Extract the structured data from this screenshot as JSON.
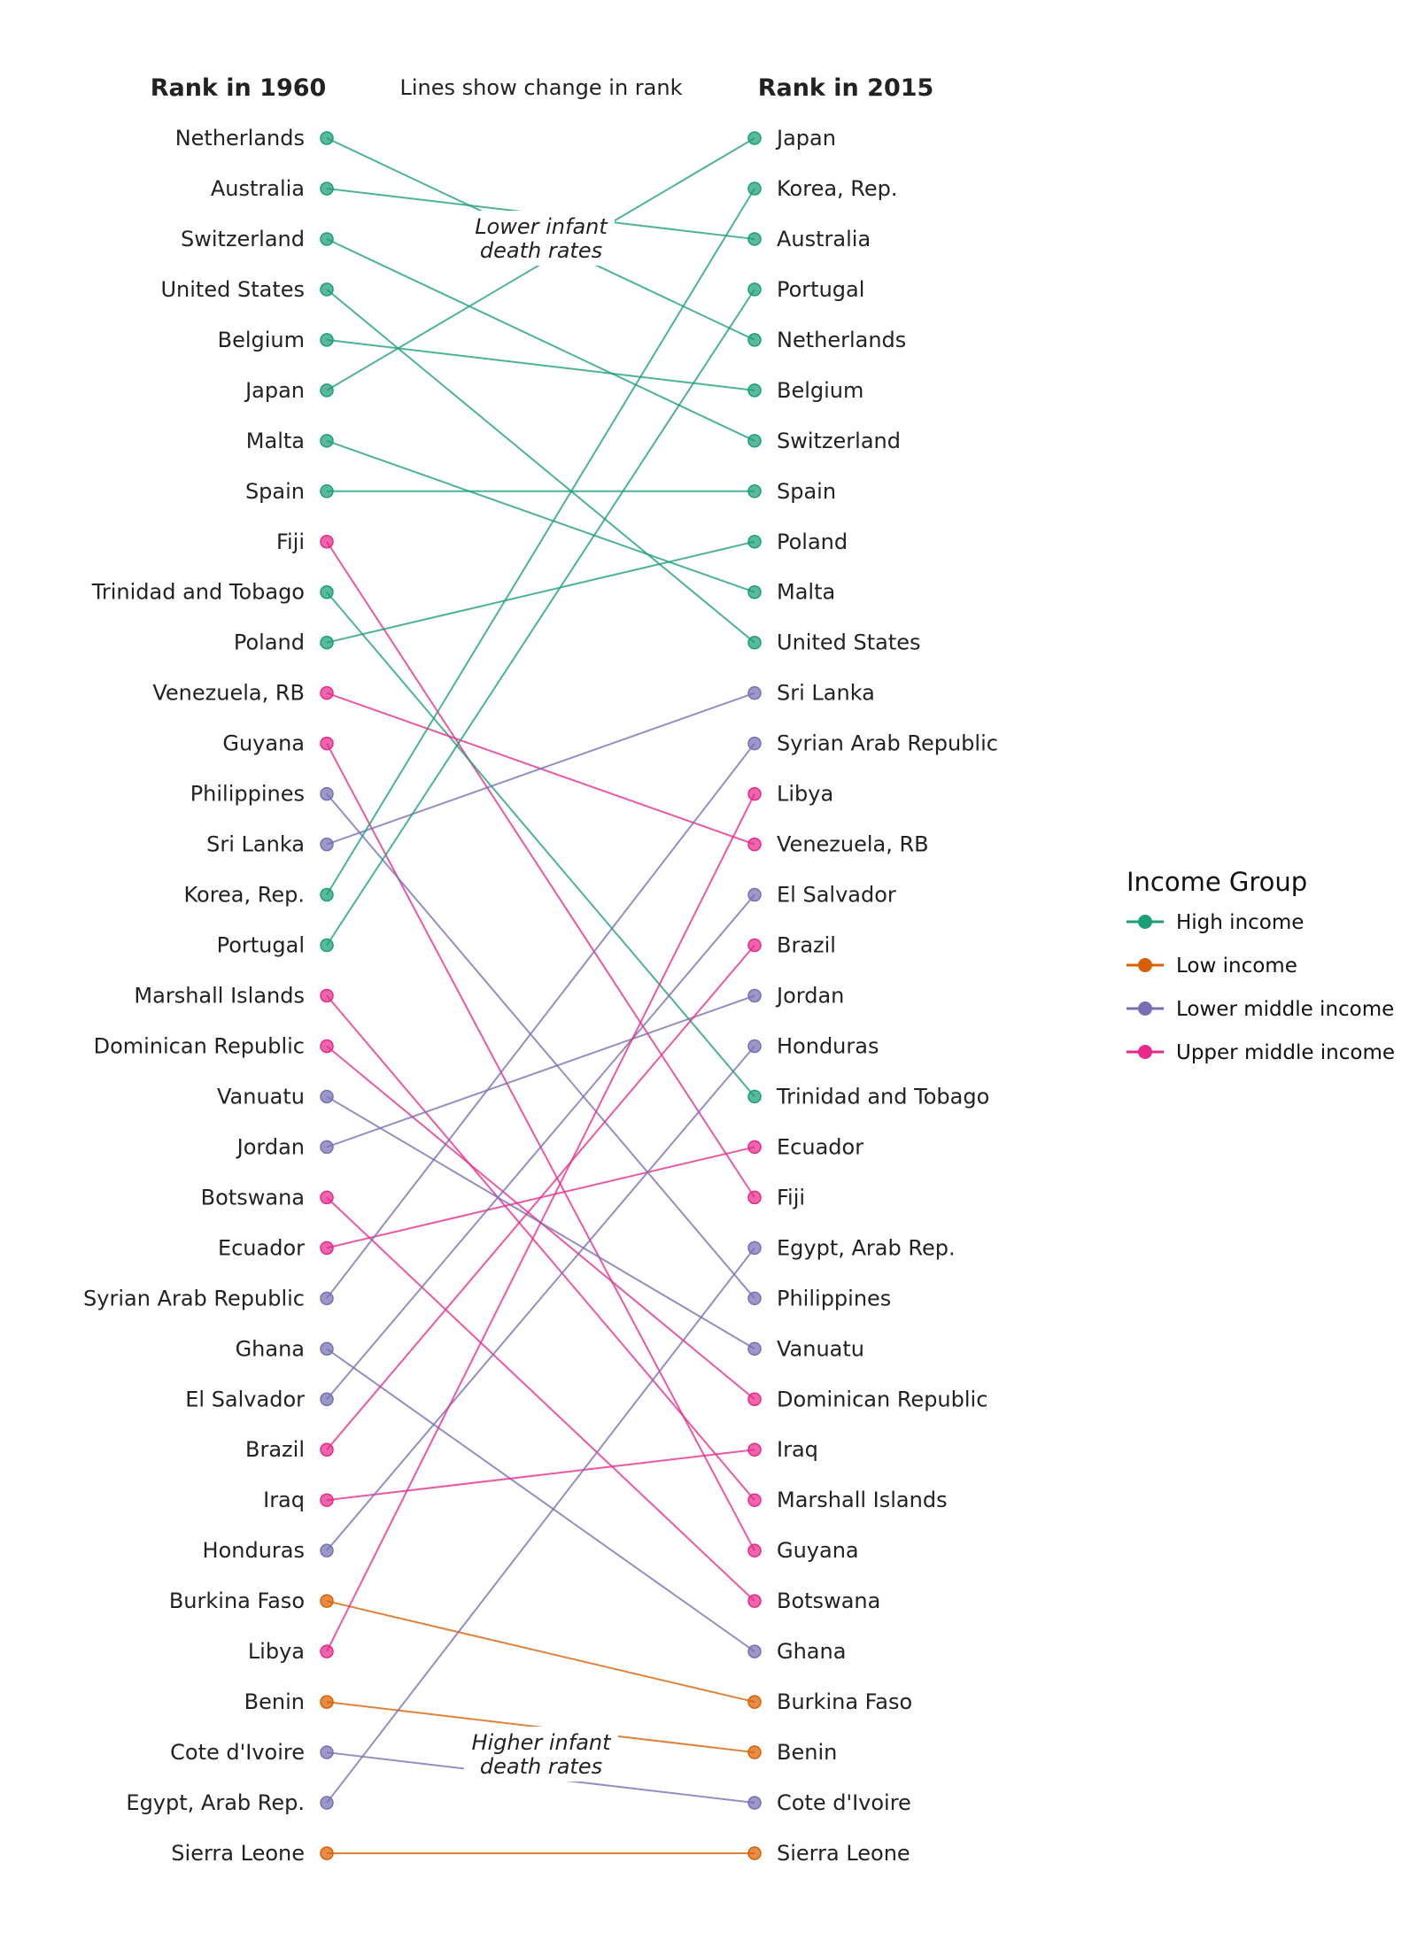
{
  "chart_data": {
    "type": "slope",
    "left_label": "Rank in 1960",
    "right_label": "Rank in 2015",
    "subtitle": "Lines show change in rank",
    "annotations": {
      "top": [
        "Lower infant",
        "death rates"
      ],
      "bottom": [
        "Higher infant",
        "death rates"
      ]
    },
    "legend_title": "Income Group",
    "legend_position": "right",
    "groups": [
      {
        "name": "High income",
        "color": "#1b9e77"
      },
      {
        "name": "Low income",
        "color": "#d95f02"
      },
      {
        "name": "Lower middle income",
        "color": "#7570b3"
      },
      {
        "name": "Upper middle income",
        "color": "#e7298a"
      }
    ],
    "rank_1960": [
      "Netherlands",
      "Australia",
      "Switzerland",
      "United States",
      "Belgium",
      "Japan",
      "Malta",
      "Spain",
      "Fiji",
      "Trinidad and Tobago",
      "Poland",
      "Venezuela, RB",
      "Guyana",
      "Philippines",
      "Sri Lanka",
      "Korea, Rep.",
      "Portugal",
      "Marshall Islands",
      "Dominican Republic",
      "Vanuatu",
      "Jordan",
      "Botswana",
      "Ecuador",
      "Syrian Arab Republic",
      "Ghana",
      "El Salvador",
      "Brazil",
      "Iraq",
      "Honduras",
      "Burkina Faso",
      "Libya",
      "Benin",
      "Cote d'Ivoire",
      "Egypt, Arab Rep.",
      "Sierra Leone"
    ],
    "rank_2015": [
      "Japan",
      "Korea, Rep.",
      "Australia",
      "Portugal",
      "Netherlands",
      "Belgium",
      "Switzerland",
      "Spain",
      "Poland",
      "Malta",
      "United States",
      "Sri Lanka",
      "Syrian Arab Republic",
      "Libya",
      "Venezuela, RB",
      "El Salvador",
      "Brazil",
      "Jordan",
      "Honduras",
      "Trinidad and Tobago",
      "Ecuador",
      "Fiji",
      "Egypt, Arab Rep.",
      "Philippines",
      "Vanuatu",
      "Dominican Republic",
      "Iraq",
      "Marshall Islands",
      "Guyana",
      "Botswana",
      "Ghana",
      "Burkina Faso",
      "Benin",
      "Cote d'Ivoire",
      "Sierra Leone"
    ],
    "income_group": {
      "Netherlands": "High income",
      "Australia": "High income",
      "Switzerland": "High income",
      "United States": "High income",
      "Belgium": "High income",
      "Japan": "High income",
      "Malta": "High income",
      "Spain": "High income",
      "Trinidad and Tobago": "High income",
      "Poland": "High income",
      "Korea, Rep.": "High income",
      "Portugal": "High income",
      "Fiji": "Upper middle income",
      "Venezuela, RB": "Upper middle income",
      "Guyana": "Upper middle income",
      "Marshall Islands": "Upper middle income",
      "Dominican Republic": "Upper middle income",
      "Botswana": "Upper middle income",
      "Ecuador": "Upper middle income",
      "Brazil": "Upper middle income",
      "Iraq": "Upper middle income",
      "Libya": "Upper middle income",
      "Philippines": "Lower middle income",
      "Sri Lanka": "Lower middle income",
      "Vanuatu": "Lower middle income",
      "Jordan": "Lower middle income",
      "Syrian Arab Republic": "Lower middle income",
      "Ghana": "Lower middle income",
      "El Salvador": "Lower middle income",
      "Honduras": "Lower middle income",
      "Cote d'Ivoire": "Lower middle income",
      "Egypt, Arab Rep.": "Lower middle income",
      "Burkina Faso": "Low income",
      "Benin": "Low income",
      "Sierra Leone": "Low income"
    }
  }
}
